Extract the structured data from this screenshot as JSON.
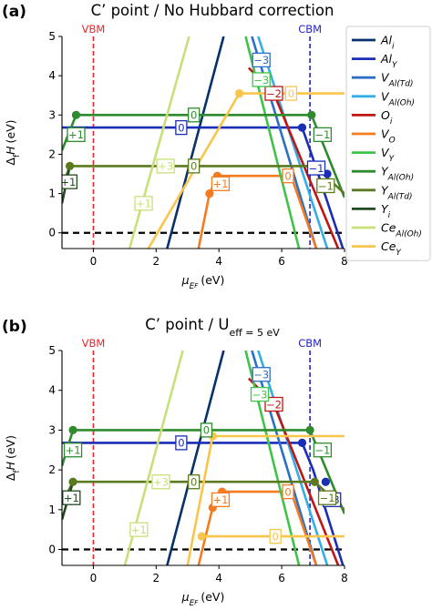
{
  "chart_data": [
    {
      "type": "line",
      "panel": "(a)",
      "title": "C’ point / No Hubbard correction",
      "xlabel": "μ_EF (eV)",
      "ylabel": "Δ_fH (eV)",
      "xlim": [
        -1,
        8
      ],
      "ylim": [
        -0.4,
        5
      ],
      "xticks": [
        0,
        2,
        4,
        6,
        8
      ],
      "yticks": [
        0,
        1,
        2,
        3,
        4,
        5
      ],
      "vbm": {
        "label": "VBM",
        "x": 0
      },
      "cbm": {
        "label": "CBM",
        "x": 6.9
      },
      "zero_line": 0,
      "series": [
        {
          "name": "Al_i",
          "color": "#08306b",
          "points": [
            [
              2.35,
              -0.4
            ],
            [
              4.15,
              5.0
            ]
          ],
          "charge_labels": [],
          "transitions": []
        },
        {
          "name": "Al_Y",
          "color": "#1a2db5",
          "points": [
            [
              -1,
              2.68
            ],
            [
              6.65,
              2.68
            ],
            [
              6.95,
              2.0
            ],
            [
              7.95,
              -0.4
            ]
          ],
          "charge_labels": [
            {
              "text": "0",
              "x": 2.8,
              "y": 2.68
            },
            {
              "text": "−1",
              "x": 7.1,
              "y": 1.65
            }
          ],
          "transitions": [
            [
              6.65,
              2.68
            ],
            [
              7.45,
              1.5
            ]
          ]
        },
        {
          "name": "V_Al(Td)",
          "color": "#2c6fc7",
          "points": [
            [
              5.05,
              5.0
            ],
            [
              7.1,
              -0.4
            ]
          ],
          "charge_labels": [
            {
              "text": "−3",
              "x": 5.35,
              "y": 4.4
            }
          ],
          "transitions": []
        },
        {
          "name": "V_Al(Oh)",
          "color": "#33aee6",
          "points": [
            [
              5.25,
              5.0
            ],
            [
              7.45,
              -0.4
            ]
          ],
          "charge_labels": [],
          "transitions": []
        },
        {
          "name": "O_i",
          "color": "#c01515",
          "points": [
            [
              4.95,
              4.2
            ],
            [
              5.75,
              3.55
            ],
            [
              7.8,
              -0.4
            ]
          ],
          "charge_labels": [
            {
              "text": "−2",
              "x": 5.75,
              "y": 3.55
            }
          ],
          "transitions": [
            [
              5.75,
              3.55
            ]
          ]
        },
        {
          "name": "V_O",
          "color": "#f47b20",
          "points": [
            [
              3.35,
              -0.4
            ],
            [
              3.7,
              1.0
            ],
            [
              3.95,
              1.45
            ],
            [
              6.3,
              1.45
            ],
            [
              7.1,
              -0.4
            ]
          ],
          "charge_labels": [
            {
              "text": "+1",
              "x": 4.05,
              "y": 1.25
            },
            {
              "text": "0",
              "x": 6.2,
              "y": 1.45
            }
          ],
          "transitions": [
            [
              3.7,
              1.0
            ],
            [
              3.95,
              1.45
            ]
          ]
        },
        {
          "name": "V_Y",
          "color": "#3fc34a",
          "points": [
            [
              4.85,
              5.0
            ],
            [
              6.55,
              -0.4
            ]
          ],
          "charge_labels": [
            {
              "text": "−3",
              "x": 5.35,
              "y": 3.9
            }
          ],
          "transitions": []
        },
        {
          "name": "Y_Al(Oh)",
          "color": "#2e8b2e",
          "points": [
            [
              -1,
              2.1
            ],
            [
              -0.55,
              3.0
            ],
            [
              6.95,
              3.0
            ],
            [
              8,
              0.9
            ]
          ],
          "charge_labels": [
            {
              "text": "+1",
              "x": -0.55,
              "y": 2.5
            },
            {
              "text": "0",
              "x": 3.2,
              "y": 3.0
            },
            {
              "text": "−1",
              "x": 7.3,
              "y": 2.5
            }
          ],
          "transitions": [
            [
              -0.55,
              3.0
            ],
            [
              6.95,
              3.0
            ]
          ]
        },
        {
          "name": "Y_Al(Td)",
          "color": "#5a7a1d",
          "points": [
            [
              -1,
              1.15
            ],
            [
              -0.75,
              1.7
            ],
            [
              7.05,
              1.7
            ],
            [
              8,
              1.0
            ]
          ],
          "charge_labels": [
            {
              "text": "0",
              "x": 3.2,
              "y": 1.7
            },
            {
              "text": "−1",
              "x": 7.4,
              "y": 1.2
            }
          ],
          "transitions": [
            [
              -0.75,
              1.7
            ],
            [
              7.05,
              1.7
            ]
          ]
        },
        {
          "name": "Y_i",
          "color": "#1f4d1f",
          "points": [
            [
              -1,
              0.75
            ],
            [
              -0.75,
              1.7
            ]
          ],
          "charge_labels": [
            {
              "text": "+1",
              "x": -0.8,
              "y": 1.3
            }
          ],
          "transitions": []
        },
        {
          "name": "Ce_Al(Oh)",
          "color": "#c8e07a",
          "points": [
            [
              1.15,
              -0.4
            ],
            [
              3.05,
              5.0
            ]
          ],
          "charge_labels": [
            {
              "text": "+3",
              "x": 2.3,
              "y": 1.7
            },
            {
              "text": "+1",
              "x": 1.6,
              "y": 0.75
            }
          ],
          "transitions": []
        },
        {
          "name": "Ce_Y",
          "color": "#f9c54a",
          "points": [
            [
              1.75,
              -0.4
            ],
            [
              4.65,
              3.55
            ],
            [
              8,
              3.55
            ]
          ],
          "charge_labels": [
            {
              "text": "0",
              "x": 6.3,
              "y": 3.55
            }
          ],
          "transitions": [
            [
              4.65,
              3.55
            ]
          ]
        }
      ]
    },
    {
      "type": "line",
      "panel": "(b)",
      "title": "C’ point / U_eff = 5 eV",
      "xlabel": "μ_EF (eV)",
      "ylabel": "Δ_fH (eV)",
      "xlim": [
        -1,
        8
      ],
      "ylim": [
        -0.4,
        5
      ],
      "xticks": [
        0,
        2,
        4,
        6,
        8
      ],
      "yticks": [
        0,
        1,
        2,
        3,
        4,
        5
      ],
      "vbm": {
        "label": "VBM",
        "x": 0
      },
      "cbm": {
        "label": "CBM",
        "x": 6.9
      },
      "zero_line": 0,
      "series": [
        {
          "name": "Al_i",
          "color": "#08306b",
          "points": [
            [
              2.35,
              -0.4
            ],
            [
              4.15,
              5.0
            ]
          ],
          "charge_labels": [],
          "transitions": []
        },
        {
          "name": "Al_Y",
          "color": "#1a2db5",
          "points": [
            [
              -1,
              2.68
            ],
            [
              6.65,
              2.68
            ],
            [
              7.0,
              2.0
            ],
            [
              7.95,
              -0.4
            ]
          ],
          "charge_labels": [
            {
              "text": "0",
              "x": 2.8,
              "y": 2.68
            },
            {
              "text": "−3",
              "x": 7.6,
              "y": 1.25
            }
          ],
          "transitions": [
            [
              6.65,
              2.68
            ],
            [
              7.4,
              1.7
            ]
          ]
        },
        {
          "name": "V_Al(Td)",
          "color": "#2c6fc7",
          "points": [
            [
              5.05,
              5.0
            ],
            [
              7.1,
              -0.4
            ]
          ],
          "charge_labels": [
            {
              "text": "−3",
              "x": 5.35,
              "y": 4.4
            }
          ],
          "transitions": []
        },
        {
          "name": "V_Al(Oh)",
          "color": "#33aee6",
          "points": [
            [
              5.25,
              5.0
            ],
            [
              7.45,
              -0.4
            ]
          ],
          "charge_labels": [],
          "transitions": []
        },
        {
          "name": "O_i",
          "color": "#c01515",
          "points": [
            [
              4.95,
              4.3
            ],
            [
              5.75,
              3.65
            ],
            [
              7.8,
              -0.4
            ]
          ],
          "charge_labels": [
            {
              "text": "−2",
              "x": 5.75,
              "y": 3.65
            }
          ],
          "transitions": [
            [
              5.75,
              3.65
            ]
          ]
        },
        {
          "name": "V_O",
          "color": "#f47b20",
          "points": [
            [
              3.35,
              -0.4
            ],
            [
              3.8,
              1.05
            ],
            [
              4.1,
              1.45
            ],
            [
              6.3,
              1.45
            ],
            [
              7.1,
              -0.4
            ]
          ],
          "charge_labels": [
            {
              "text": "+1",
              "x": 4.05,
              "y": 1.25
            },
            {
              "text": "0",
              "x": 6.2,
              "y": 1.45
            }
          ],
          "transitions": [
            [
              3.8,
              1.05
            ],
            [
              4.1,
              1.45
            ]
          ]
        },
        {
          "name": "V_Y",
          "color": "#3fc34a",
          "points": [
            [
              4.85,
              5.0
            ],
            [
              6.55,
              -0.4
            ]
          ],
          "charge_labels": [
            {
              "text": "−3",
              "x": 5.3,
              "y": 3.9
            }
          ],
          "transitions": []
        },
        {
          "name": "Y_Al(Oh)",
          "color": "#2e8b2e",
          "points": [
            [
              -1,
              2.1
            ],
            [
              -0.65,
              3.0
            ],
            [
              6.9,
              3.0
            ],
            [
              8,
              0.9
            ]
          ],
          "charge_labels": [
            {
              "text": "+1",
              "x": -0.65,
              "y": 2.5
            },
            {
              "text": "0",
              "x": 3.6,
              "y": 3.0
            },
            {
              "text": "−1",
              "x": 7.3,
              "y": 2.5
            }
          ],
          "transitions": [
            [
              -0.65,
              3.0
            ],
            [
              6.9,
              3.0
            ]
          ]
        },
        {
          "name": "Y_Al(Td)",
          "color": "#5a7a1d",
          "points": [
            [
              -1,
              1.15
            ],
            [
              -0.65,
              1.7
            ],
            [
              7.05,
              1.7
            ],
            [
              8,
              1.0
            ]
          ],
          "charge_labels": [
            {
              "text": "0",
              "x": 3.2,
              "y": 1.7
            },
            {
              "text": "−1",
              "x": 7.45,
              "y": 1.3
            }
          ],
          "transitions": [
            [
              -0.65,
              1.7
            ],
            [
              7.05,
              1.7
            ]
          ]
        },
        {
          "name": "Y_i",
          "color": "#1f4d1f",
          "points": [
            [
              -1,
              0.75
            ],
            [
              -0.65,
              1.7
            ]
          ],
          "charge_labels": [
            {
              "text": "+1",
              "x": -0.7,
              "y": 1.3
            }
          ],
          "transitions": []
        },
        {
          "name": "Ce_Al(Oh)",
          "color": "#c8e07a",
          "points": [
            [
              1.0,
              -0.4
            ],
            [
              2.85,
              5.0
            ]
          ],
          "charge_labels": [
            {
              "text": "+3",
              "x": 2.15,
              "y": 1.7
            },
            {
              "text": "+1",
              "x": 1.45,
              "y": 0.5
            }
          ],
          "transitions": []
        },
        {
          "name": "Ce_Y",
          "color": "#f9c54a",
          "points": [
            [
              3.0,
              -0.4
            ],
            [
              3.8,
              2.85
            ],
            [
              8,
              2.85
            ]
          ],
          "charge_labels": [
            {
              "text": "0",
              "x": 5.8,
              "y": 0.33
            }
          ],
          "transitions": [
            [
              3.8,
              2.85
            ],
            [
              3.45,
              0.33
            ]
          ],
          "extra_lines": [
            [
              [
                3.45,
                0.33
              ],
              [
                8,
                0.33
              ]
            ]
          ]
        }
      ]
    }
  ],
  "legend": {
    "placement": "right",
    "entries": [
      {
        "label": "Al_i",
        "color": "#08306b"
      },
      {
        "label": "Al_Y",
        "color": "#1a2db5"
      },
      {
        "label": "V_Al(Td)",
        "color": "#2c6fc7"
      },
      {
        "label": "V_Al(Oh)",
        "color": "#33aee6"
      },
      {
        "label": "O_i",
        "color": "#c01515"
      },
      {
        "label": "V_O",
        "color": "#f47b20"
      },
      {
        "label": "V_Y",
        "color": "#3fc34a"
      },
      {
        "label": "Y_Al(Oh)",
        "color": "#2e8b2e"
      },
      {
        "label": "Y_Al(Td)",
        "color": "#5a7a1d"
      },
      {
        "label": "Y_i",
        "color": "#1f4d1f"
      },
      {
        "label": "Ce_Al(Oh)",
        "color": "#c8e07a"
      },
      {
        "label": "Ce_Y",
        "color": "#f9c54a"
      }
    ]
  },
  "styles": {
    "vbm_color": "#e8262a",
    "cbm_color": "#2323c8"
  }
}
